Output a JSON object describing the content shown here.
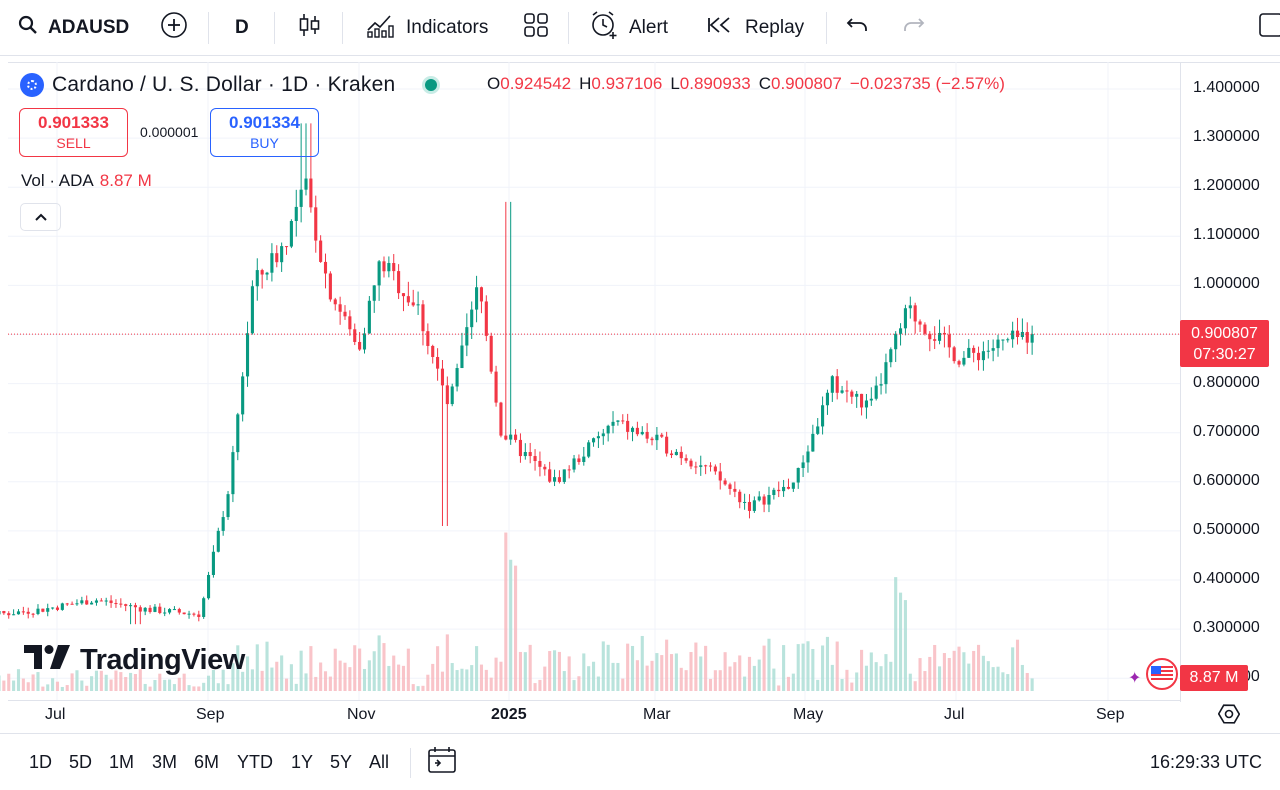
{
  "toolbar": {
    "symbol": "ADAUSD",
    "interval": "D",
    "indicators_label": "Indicators",
    "alert_label": "Alert",
    "replay_label": "Replay"
  },
  "legend": {
    "title": "Cardano / U. S. Dollar · 1D · Kraken",
    "open_key": "O",
    "open": "0.924542",
    "high_key": "H",
    "high": "0.937106",
    "low_key": "L",
    "low": "0.890933",
    "close_key": "C",
    "close": "0.900807",
    "change": "−0.023735 (−2.57%)"
  },
  "trade": {
    "sell_price": "0.901333",
    "sell_label": "SELL",
    "spread": "0.000001",
    "buy_price": "0.901334",
    "buy_label": "BUY"
  },
  "volume": {
    "label": "Vol · ADA",
    "value": "8.87 M"
  },
  "watermark": "TradingView",
  "price_scale": {
    "ticks": [
      "1.400000",
      "1.300000",
      "1.200000",
      "1.100000",
      "1.000000",
      "0.900000",
      "0.800000",
      "0.700000",
      "0.600000",
      "0.500000",
      "0.400000",
      "0.300000",
      "0.200000"
    ],
    "last_price": "0.900807",
    "countdown": "07:30:27",
    "volume_badge": "8.87 M"
  },
  "time_axis": {
    "labels": [
      "Jul",
      "Sep",
      "Nov",
      "2025",
      "Mar",
      "May",
      "Jul",
      "Sep"
    ]
  },
  "bottom": {
    "ranges": [
      "1D",
      "5D",
      "1M",
      "3M",
      "6M",
      "YTD",
      "1Y",
      "5Y",
      "All"
    ],
    "clock": "16:29:33 UTC"
  },
  "colors": {
    "up": "#089981",
    "down": "#f23645",
    "accent": "#2962ff"
  },
  "chart_data": {
    "type": "candlestick",
    "symbol": "ADAUSD",
    "interval": "1D",
    "ylim": [
      0.2,
      1.4
    ],
    "x_labels": [
      "Jul",
      "Sep",
      "Nov",
      "2025",
      "Mar",
      "May",
      "Jul",
      "Sep"
    ],
    "anchors": {
      "x_month": [
        0,
        2,
        4,
        6,
        8,
        10,
        12,
        14,
        16
      ],
      "price": [
        0.44,
        0.39,
        0.33,
        0.34,
        0.36,
        0.34,
        0.33,
        0.6,
        1.0,
        1.08,
        1.2,
        1.0,
        0.87,
        1.05,
        0.95,
        0.75,
        1.0,
        0.7,
        0.6,
        0.72,
        0.68,
        0.63,
        0.55,
        0.6,
        0.8,
        0.75,
        0.95,
        0.85,
        0.9
      ],
      "price_time": [
        0,
        0.6,
        1.2,
        1.8,
        2.5,
        3.2,
        3.9,
        4.3,
        4.6,
        5.0,
        5.3,
        5.6,
        6.0,
        6.3,
        6.8,
        7.2,
        7.6,
        7.9,
        8.6,
        9.4,
        10.0,
        10.6,
        11.2,
        11.8,
        12.3,
        12.8,
        13.3,
        14.0,
        14.9
      ]
    },
    "last_close": 0.900807,
    "extremes": {
      "max_high": 1.33,
      "min_low": 0.28
    }
  }
}
